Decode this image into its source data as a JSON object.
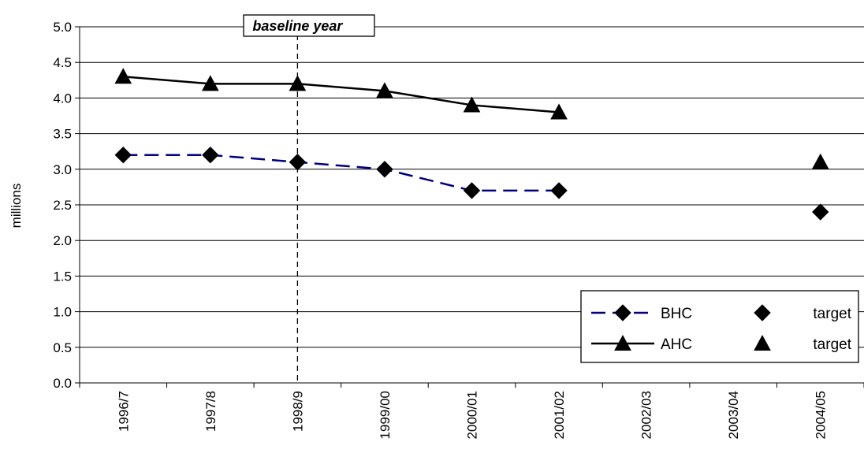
{
  "chart_data": {
    "type": "line",
    "categories": [
      "1996/7",
      "1997/8",
      "1998/9",
      "1999/00",
      "2000/01",
      "2001/02",
      "2002/03",
      "2003/04",
      "2004/05"
    ],
    "ylabel": "millions",
    "ylim": [
      0,
      5
    ],
    "yticks": [
      "0.0",
      "0.5",
      "1.0",
      "1.5",
      "2.0",
      "2.5",
      "3.0",
      "3.5",
      "4.0",
      "4.5",
      "5.0"
    ],
    "grid": true,
    "legend_position": "bottom-right",
    "series": [
      {
        "name": "BHC",
        "style": "dashed",
        "marker": "diamond",
        "color": "#000080",
        "values": [
          3.2,
          3.2,
          3.1,
          3.0,
          2.7,
          2.7,
          null,
          null,
          null
        ]
      },
      {
        "name": "AHC",
        "style": "solid",
        "marker": "triangle",
        "color": "#000000",
        "values": [
          4.3,
          4.2,
          4.2,
          4.1,
          3.9,
          3.8,
          null,
          null,
          null
        ]
      },
      {
        "name": "target",
        "style": "markers",
        "marker": "diamond",
        "color": "#000000",
        "values": [
          null,
          null,
          null,
          null,
          null,
          null,
          null,
          null,
          2.4
        ]
      },
      {
        "name": "target",
        "style": "markers",
        "marker": "triangle",
        "color": "#000000",
        "values": [
          null,
          null,
          null,
          null,
          null,
          null,
          null,
          null,
          3.1
        ]
      }
    ],
    "annotations": [
      {
        "text": "baseline year",
        "category": "1998/9",
        "style": "dashed vertical line"
      }
    ]
  }
}
